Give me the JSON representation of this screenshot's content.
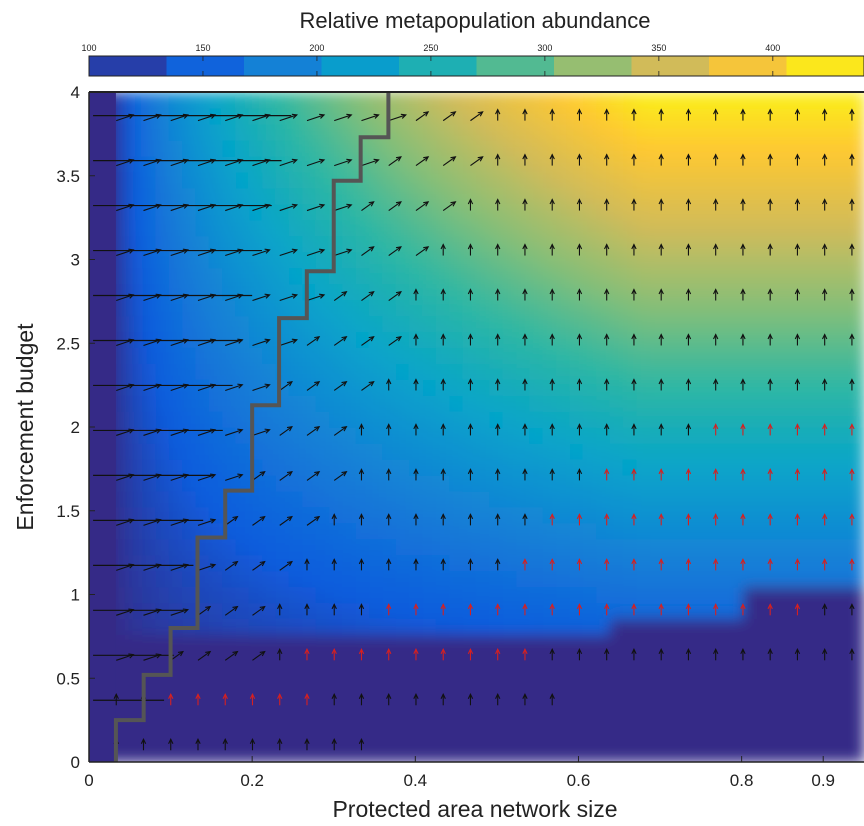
{
  "chart_data": {
    "type": "heatmap",
    "title": "Relative metapopulation abundance",
    "xlabel": "Protected area network size",
    "ylabel": "Enforcement budget",
    "xlim": [
      0,
      0.95
    ],
    "ylim": [
      0,
      4
    ],
    "x_ticks": [
      {
        "value": 0,
        "label": "0"
      },
      {
        "value": 0.2,
        "label": "0.2"
      },
      {
        "value": 0.4,
        "label": "0.4"
      },
      {
        "value": 0.6,
        "label": "0.6"
      },
      {
        "value": 0.8,
        "label": "0.8"
      },
      {
        "value": 0.9,
        "label": "0.9"
      }
    ],
    "y_ticks": [
      {
        "value": 0,
        "label": "0"
      },
      {
        "value": 0.5,
        "label": "0.5"
      },
      {
        "value": 1,
        "label": "1"
      },
      {
        "value": 1.5,
        "label": "1.5"
      },
      {
        "value": 2,
        "label": "2"
      },
      {
        "value": 2.5,
        "label": "2.5"
      },
      {
        "value": 3,
        "label": "3"
      },
      {
        "value": 3.5,
        "label": "3.5"
      },
      {
        "value": 4,
        "label": "4"
      }
    ],
    "colorbar": {
      "min": 100,
      "max": 440,
      "location": "top",
      "ticks": [
        {
          "value": 100,
          "label": "100"
        },
        {
          "value": 150,
          "label": "150"
        },
        {
          "value": 200,
          "label": "200"
        },
        {
          "value": 250,
          "label": "250"
        },
        {
          "value": 300,
          "label": "300"
        },
        {
          "value": 350,
          "label": "350"
        },
        {
          "value": 400,
          "label": "400"
        }
      ],
      "colors": [
        "#352a87",
        "#0f5cdd",
        "#1481d6",
        "#06a4ca",
        "#2eb7a4",
        "#87bf77",
        "#d1bb59",
        "#fec832",
        "#f9fb0e"
      ]
    },
    "optimal_boundary": [
      [
        0.033,
        0
      ],
      [
        0.033,
        0.25
      ],
      [
        0.067,
        0.25
      ],
      [
        0.067,
        0.52
      ],
      [
        0.1,
        0.52
      ],
      [
        0.1,
        0.8
      ],
      [
        0.133,
        0.8
      ],
      [
        0.133,
        1.34
      ],
      [
        0.167,
        1.34
      ],
      [
        0.167,
        1.62
      ],
      [
        0.2,
        1.62
      ],
      [
        0.2,
        2.13
      ],
      [
        0.233,
        2.13
      ],
      [
        0.233,
        2.65
      ],
      [
        0.267,
        2.65
      ],
      [
        0.267,
        2.93
      ],
      [
        0.3,
        2.93
      ],
      [
        0.3,
        3.47
      ],
      [
        0.333,
        3.47
      ],
      [
        0.333,
        3.73
      ],
      [
        0.367,
        3.73
      ],
      [
        0.367,
        4
      ]
    ],
    "boundary_color": "#555555",
    "arrow_colors": {
      "normal": "#111111",
      "highlight": "#d62020"
    },
    "grid": false
  }
}
